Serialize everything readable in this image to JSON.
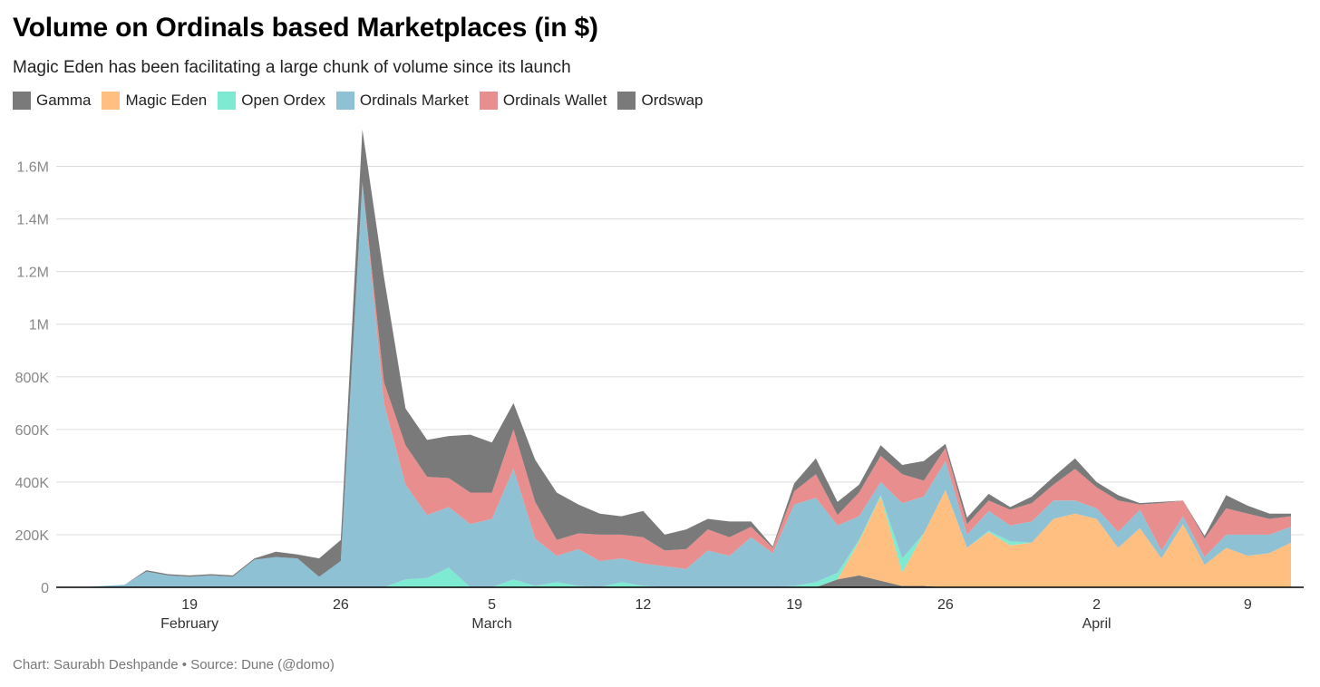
{
  "title": "Volume on Ordinals based Marketplaces (in $)",
  "subtitle": "Magic Eden has been facilitating a large chunk of volume since its launch",
  "footer": "Chart: Saurabh Deshpande • Source: Dune (@domo)",
  "legend": [
    {
      "label": "Gamma",
      "color": "#7a7a7a"
    },
    {
      "label": "Magic Eden",
      "color": "#ffbf80"
    },
    {
      "label": "Open Ordex",
      "color": "#7eead2"
    },
    {
      "label": "Ordinals Market",
      "color": "#8fc1d4"
    },
    {
      "label": "Ordinals Wallet",
      "color": "#e88e8e"
    },
    {
      "label": "Ordswap",
      "color": "#7a7a7a"
    }
  ],
  "chart_data": {
    "type": "area",
    "stacked": true,
    "x_start": "2023-02-14",
    "x_end": "2023-04-11",
    "ylim": [
      0,
      1750000
    ],
    "y_ticks": [
      0,
      200000,
      400000,
      600000,
      800000,
      1000000,
      1200000,
      1400000,
      1600000
    ],
    "y_tick_labels": [
      "0",
      "200K",
      "400K",
      "600K",
      "800K",
      "1M",
      "1.2M",
      "1.4M",
      "1.6M"
    ],
    "x_ticks": [
      {
        "date": "2023-02-19",
        "label": "19",
        "month": "February"
      },
      {
        "date": "2023-02-26",
        "label": "26",
        "month": ""
      },
      {
        "date": "2023-03-05",
        "label": "5",
        "month": "March"
      },
      {
        "date": "2023-03-12",
        "label": "12",
        "month": ""
      },
      {
        "date": "2023-03-19",
        "label": "19",
        "month": ""
      },
      {
        "date": "2023-03-26",
        "label": "26",
        "month": ""
      },
      {
        "date": "2023-04-02",
        "label": "2",
        "month": "April"
      },
      {
        "date": "2023-04-09",
        "label": "9",
        "month": ""
      }
    ],
    "grid": "horizontal",
    "legend_position": "top-left",
    "dates": [
      "2023-02-14",
      "2023-02-15",
      "2023-02-16",
      "2023-02-17",
      "2023-02-18",
      "2023-02-19",
      "2023-02-20",
      "2023-02-21",
      "2023-02-22",
      "2023-02-23",
      "2023-02-24",
      "2023-02-25",
      "2023-02-26",
      "2023-02-27",
      "2023-02-28",
      "2023-03-01",
      "2023-03-02",
      "2023-03-03",
      "2023-03-04",
      "2023-03-05",
      "2023-03-06",
      "2023-03-07",
      "2023-03-08",
      "2023-03-09",
      "2023-03-10",
      "2023-03-11",
      "2023-03-12",
      "2023-03-13",
      "2023-03-14",
      "2023-03-15",
      "2023-03-16",
      "2023-03-17",
      "2023-03-18",
      "2023-03-19",
      "2023-03-20",
      "2023-03-21",
      "2023-03-22",
      "2023-03-23",
      "2023-03-24",
      "2023-03-25",
      "2023-03-26",
      "2023-03-27",
      "2023-03-28",
      "2023-03-29",
      "2023-03-30",
      "2023-03-31",
      "2023-04-01",
      "2023-04-02",
      "2023-04-03",
      "2023-04-04",
      "2023-04-05",
      "2023-04-06",
      "2023-04-07",
      "2023-04-08",
      "2023-04-09",
      "2023-04-10",
      "2023-04-11"
    ],
    "series": [
      {
        "name": "Gamma",
        "color": "#7a7a7a",
        "values": [
          0,
          0,
          0,
          0,
          0,
          0,
          0,
          0,
          0,
          0,
          0,
          0,
          0,
          0,
          0,
          0,
          0,
          0,
          0,
          0,
          0,
          0,
          0,
          0,
          0,
          0,
          0,
          0,
          0,
          0,
          0,
          0,
          0,
          0,
          0,
          30000,
          45000,
          25000,
          5000,
          5000,
          0,
          0,
          0,
          0,
          0,
          0,
          0,
          0,
          0,
          0,
          0,
          0,
          0,
          0,
          0,
          0,
          0
        ]
      },
      {
        "name": "Magic Eden",
        "color": "#ffbf80",
        "values": [
          0,
          0,
          0,
          0,
          0,
          0,
          0,
          0,
          0,
          0,
          0,
          0,
          0,
          0,
          0,
          0,
          0,
          0,
          0,
          0,
          0,
          0,
          0,
          0,
          0,
          0,
          0,
          0,
          0,
          0,
          0,
          0,
          0,
          0,
          0,
          0,
          130000,
          320000,
          50000,
          200000,
          370000,
          150000,
          210000,
          160000,
          170000,
          260000,
          280000,
          260000,
          150000,
          225000,
          110000,
          240000,
          85000,
          150000,
          120000,
          130000,
          170000
        ]
      },
      {
        "name": "Open Ordex",
        "color": "#7eead2",
        "values": [
          0,
          0,
          0,
          0,
          0,
          0,
          0,
          0,
          0,
          0,
          0,
          0,
          0,
          0,
          0,
          30000,
          35000,
          75000,
          0,
          0,
          30000,
          5000,
          20000,
          5000,
          0,
          20000,
          5000,
          0,
          0,
          0,
          0,
          0,
          0,
          5000,
          20000,
          25000,
          5000,
          5000,
          55000,
          0,
          0,
          0,
          5000,
          15000,
          0,
          0,
          0,
          0,
          0,
          0,
          0,
          0,
          0,
          0,
          0,
          0,
          0
        ]
      },
      {
        "name": "Ordinals Market",
        "color": "#8fc1d4",
        "values": [
          0,
          5000,
          10000,
          60000,
          45000,
          40000,
          45000,
          40000,
          105000,
          115000,
          110000,
          40000,
          100000,
          1540000,
          700000,
          360000,
          240000,
          230000,
          240000,
          260000,
          420000,
          180000,
          100000,
          140000,
          100000,
          90000,
          85000,
          80000,
          70000,
          140000,
          120000,
          190000,
          130000,
          310000,
          320000,
          180000,
          90000,
          50000,
          210000,
          140000,
          110000,
          50000,
          75000,
          60000,
          80000,
          70000,
          50000,
          40000,
          60000,
          70000,
          30000,
          30000,
          30000,
          50000,
          80000,
          70000,
          60000
        ]
      },
      {
        "name": "Ordinals Wallet",
        "color": "#e88e8e",
        "values": [
          0,
          0,
          0,
          0,
          0,
          0,
          0,
          0,
          0,
          0,
          0,
          0,
          0,
          0,
          80000,
          150000,
          145000,
          110000,
          120000,
          100000,
          150000,
          140000,
          60000,
          60000,
          100000,
          90000,
          100000,
          60000,
          75000,
          80000,
          70000,
          40000,
          20000,
          50000,
          90000,
          40000,
          90000,
          100000,
          110000,
          60000,
          50000,
          40000,
          40000,
          60000,
          70000,
          60000,
          120000,
          80000,
          120000,
          20000,
          180000,
          60000,
          70000,
          100000,
          80000,
          60000,
          40000
        ]
      },
      {
        "name": "Ordswap",
        "color": "#7a7a7a",
        "values": [
          0,
          0,
          0,
          5000,
          5000,
          5000,
          5000,
          5000,
          5000,
          20000,
          15000,
          70000,
          80000,
          200000,
          400000,
          140000,
          140000,
          160000,
          220000,
          190000,
          100000,
          160000,
          180000,
          110000,
          80000,
          70000,
          100000,
          60000,
          75000,
          40000,
          60000,
          20000,
          5000,
          30000,
          60000,
          50000,
          30000,
          40000,
          35000,
          75000,
          15000,
          25000,
          25000,
          10000,
          25000,
          30000,
          40000,
          20000,
          20000,
          5000,
          5000,
          0,
          10000,
          50000,
          30000,
          20000,
          10000
        ]
      }
    ]
  }
}
